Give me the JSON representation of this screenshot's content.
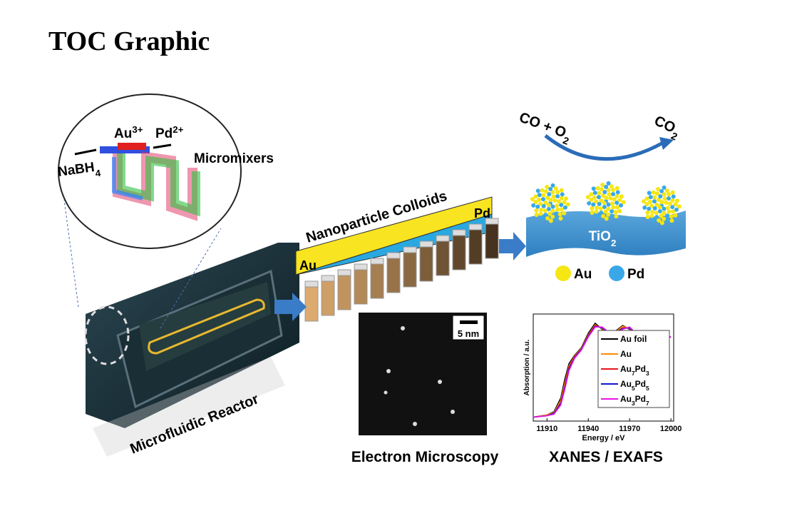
{
  "header": {
    "title": "TOC Graphic"
  },
  "figure": {
    "mixer": {
      "au": [
        {
          "text": "Au"
        },
        {
          "sup": "3+"
        }
      ],
      "pd": [
        {
          "text": "Pd"
        },
        {
          "sup": "2+"
        }
      ],
      "reductant": [
        {
          "text": "NaBH"
        },
        {
          "sub": "4"
        }
      ],
      "label": "Micromixers"
    },
    "reactor_label": "Microfluidic Reactor",
    "colloids": {
      "title": "Nanoparticle Colloids",
      "low": "Au",
      "high": "Pd"
    },
    "reaction": {
      "reactants": [
        {
          "text": "CO + O"
        },
        {
          "sub": "2"
        }
      ],
      "product": [
        {
          "text": "CO"
        },
        {
          "sub": "2"
        }
      ],
      "support": [
        {
          "text": "TiO"
        },
        {
          "sub": "2"
        }
      ]
    },
    "legend": [
      {
        "name": "Au",
        "color": "#f5e614"
      },
      {
        "name": "Pd",
        "color": "#3aa8e8"
      }
    ],
    "microscopy": {
      "scale": "5 nm",
      "label": "Electron Microscopy"
    },
    "xanes": {
      "label": "XANES / EXAFS",
      "x_label": "Energy / eV",
      "y_label": "Absorption / a.u.",
      "xlim": [
        11900,
        12002
      ],
      "xticks": [
        11910,
        11940,
        11970,
        12000
      ],
      "ylim": [
        0,
        1.4
      ],
      "x": [
        11900,
        11910,
        11915,
        11920,
        11923,
        11926,
        11930,
        11935,
        11940,
        11945,
        11950,
        11955,
        11960,
        11965,
        11970,
        11975,
        11980,
        11985,
        11990,
        11995,
        12000
      ],
      "series": [
        {
          "name": [
            {
              "text": "Au foil"
            }
          ],
          "color": "#000000",
          "values": [
            0.05,
            0.08,
            0.12,
            0.3,
            0.55,
            0.75,
            0.86,
            0.96,
            1.15,
            1.28,
            1.2,
            1.12,
            1.18,
            1.25,
            1.2,
            1.1,
            1.07,
            1.12,
            1.1,
            1.08,
            1.1
          ]
        },
        {
          "name": [
            {
              "text": "Au"
            }
          ],
          "color": "#ff8c00",
          "values": [
            0.05,
            0.08,
            0.11,
            0.27,
            0.5,
            0.72,
            0.85,
            0.95,
            1.13,
            1.26,
            1.21,
            1.13,
            1.17,
            1.24,
            1.21,
            1.11,
            1.08,
            1.11,
            1.1,
            1.09,
            1.1
          ]
        },
        {
          "name": [
            {
              "text": "Au"
            },
            {
              "sub": "7"
            },
            {
              "text": "Pd"
            },
            {
              "sub": "3"
            }
          ],
          "color": "#e8141e",
          "values": [
            0.05,
            0.07,
            0.1,
            0.24,
            0.46,
            0.7,
            0.84,
            0.94,
            1.12,
            1.25,
            1.22,
            1.14,
            1.16,
            1.22,
            1.22,
            1.12,
            1.08,
            1.1,
            1.1,
            1.09,
            1.1
          ]
        },
        {
          "name": [
            {
              "text": "Au"
            },
            {
              "sub": "5"
            },
            {
              "text": "Pd"
            },
            {
              "sub": "5"
            }
          ],
          "color": "#1414c8",
          "values": [
            0.05,
            0.07,
            0.1,
            0.23,
            0.44,
            0.68,
            0.83,
            0.94,
            1.11,
            1.24,
            1.22,
            1.15,
            1.16,
            1.21,
            1.22,
            1.13,
            1.09,
            1.1,
            1.1,
            1.1,
            1.1
          ]
        },
        {
          "name": [
            {
              "text": "Au"
            },
            {
              "sub": "3"
            },
            {
              "text": "Pd"
            },
            {
              "sub": "7"
            }
          ],
          "color": "#e614e6",
          "values": [
            0.05,
            0.07,
            0.09,
            0.21,
            0.42,
            0.66,
            0.82,
            0.93,
            1.1,
            1.23,
            1.23,
            1.16,
            1.15,
            1.2,
            1.23,
            1.14,
            1.09,
            1.09,
            1.1,
            1.1,
            1.1
          ]
        }
      ]
    }
  }
}
